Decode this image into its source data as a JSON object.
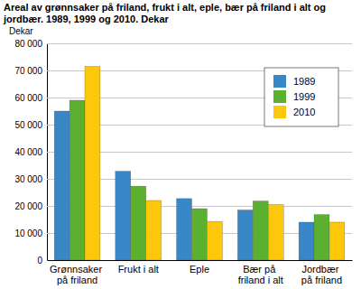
{
  "chart_data": {
    "type": "bar",
    "title": "Areal av grønnsaker på friland, frukt i alt, eple, bær på friland i alt og jordbær. 1989, 1999 og 2010. Dekar",
    "y_label": "Dekar",
    "categories": [
      "Grønnsaker på friland",
      "Frukt i alt",
      "Eple",
      "Bær på friland i alt",
      "Jordbær på friland"
    ],
    "series": [
      {
        "name": "1989",
        "color": "#3a87c8",
        "values": [
          55000,
          32800,
          22700,
          18500,
          14000
        ]
      },
      {
        "name": "1999",
        "color": "#5cb030",
        "values": [
          59000,
          27300,
          19000,
          21800,
          16800
        ]
      },
      {
        "name": "2010",
        "color": "#fdc70c",
        "values": [
          71500,
          22000,
          14300,
          20500,
          14000
        ]
      }
    ],
    "ylim": [
      0,
      80000
    ],
    "yticks": [
      0,
      {
        "value": 10000,
        "label": "10 000"
      },
      {
        "value": 20000,
        "label": "20 000"
      },
      {
        "value": 30000,
        "label": "30 000"
      },
      {
        "value": 40000,
        "label": "40 000"
      },
      {
        "value": 50000,
        "label": "50 000"
      },
      {
        "value": 60000,
        "label": "60 000"
      },
      {
        "value": 70000,
        "label": "70 000"
      },
      {
        "value": 80000,
        "label": "80 000"
      }
    ],
    "grid": true,
    "legend": "upper right"
  }
}
